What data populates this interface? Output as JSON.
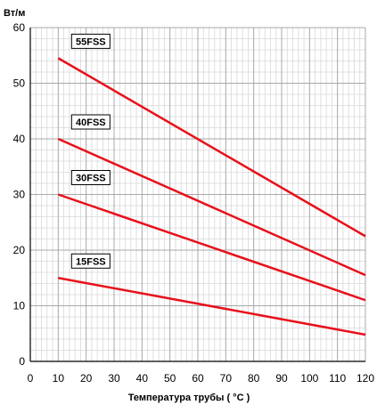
{
  "chart_data": {
    "type": "line",
    "title": "",
    "ylabel": "Вт/м",
    "xlabel": "Температура трубы ( °C )",
    "xlim": [
      0,
      120
    ],
    "ylim": [
      0,
      60
    ],
    "x_ticks": [
      0,
      10,
      20,
      30,
      40,
      50,
      60,
      70,
      80,
      90,
      100,
      110,
      120
    ],
    "y_ticks": [
      0,
      10,
      20,
      30,
      40,
      50,
      60
    ],
    "grid": true,
    "line_color": "#e8101a",
    "series": [
      {
        "name": "55FSS",
        "x": [
          10,
          120
        ],
        "y": [
          54.5,
          22.5
        ]
      },
      {
        "name": "40FSS",
        "x": [
          10,
          120
        ],
        "y": [
          40,
          15.5
        ]
      },
      {
        "name": "30FSS",
        "x": [
          10,
          120
        ],
        "y": [
          30,
          11
        ]
      },
      {
        "name": "15FSS",
        "x": [
          10,
          120
        ],
        "y": [
          15,
          4.8
        ]
      }
    ]
  }
}
